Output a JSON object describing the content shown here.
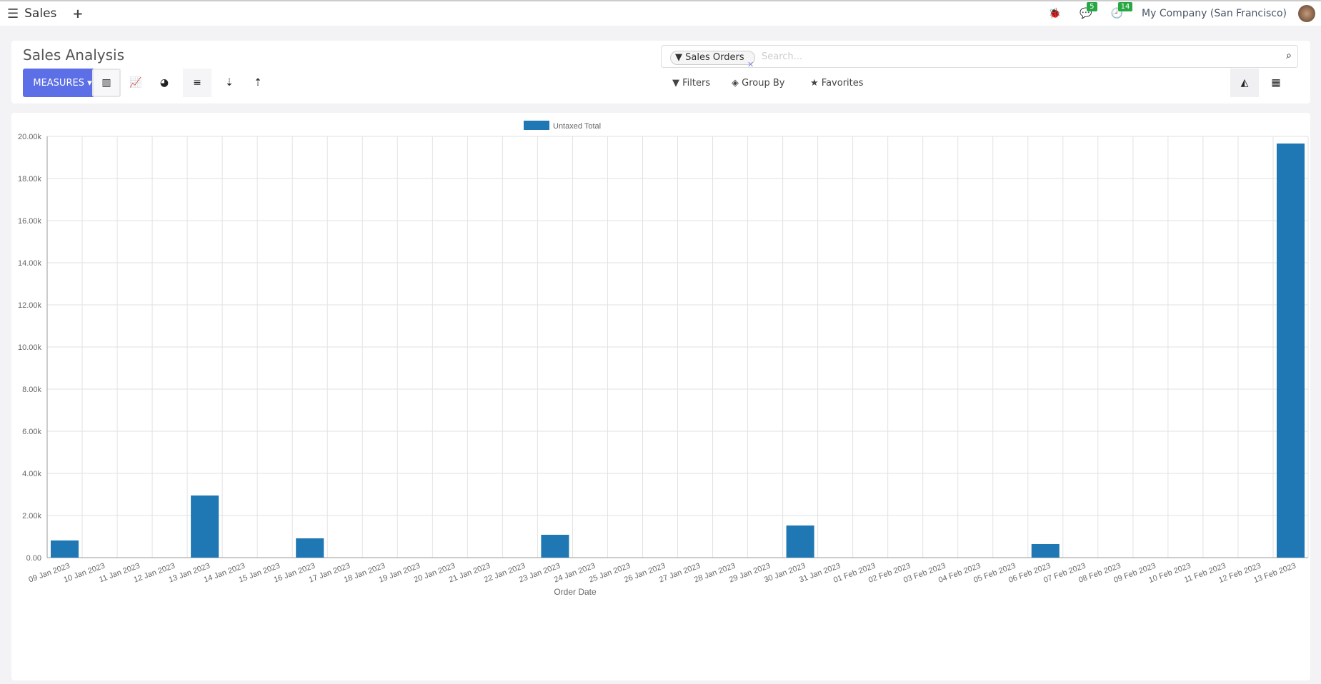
{
  "topbar": {
    "app": "Sales",
    "messages_count": "5",
    "activities_count": "14",
    "company": "My Company (San Francisco)"
  },
  "control": {
    "title": "Sales Analysis",
    "measures": "MEASURES",
    "facet": "Sales Orders",
    "search_placeholder": "Search...",
    "filters": "Filters",
    "group_by": "Group By",
    "favorites": "Favorites"
  },
  "chart_data": {
    "type": "bar",
    "legend": [
      "Untaxed Total"
    ],
    "legend_placement": "top",
    "xlabel": "Order Date",
    "ylabel": "",
    "ylim": [
      0,
      20000
    ],
    "yticks": [
      "0.00",
      "2.00k",
      "4.00k",
      "6.00k",
      "8.00k",
      "10.00k",
      "12.00k",
      "14.00k",
      "16.00k",
      "18.00k",
      "20.00k"
    ],
    "color": "#1f77b4",
    "grid": true,
    "categories": [
      "09 Jan 2023",
      "10 Jan 2023",
      "11 Jan 2023",
      "12 Jan 2023",
      "13 Jan 2023",
      "14 Jan 2023",
      "15 Jan 2023",
      "16 Jan 2023",
      "17 Jan 2023",
      "18 Jan 2023",
      "19 Jan 2023",
      "20 Jan 2023",
      "21 Jan 2023",
      "22 Jan 2023",
      "23 Jan 2023",
      "24 Jan 2023",
      "25 Jan 2023",
      "26 Jan 2023",
      "27 Jan 2023",
      "28 Jan 2023",
      "29 Jan 2023",
      "30 Jan 2023",
      "31 Jan 2023",
      "01 Feb 2023",
      "02 Feb 2023",
      "03 Feb 2023",
      "04 Feb 2023",
      "05 Feb 2023",
      "06 Feb 2023",
      "07 Feb 2023",
      "08 Feb 2023",
      "09 Feb 2023",
      "10 Feb 2023",
      "11 Feb 2023",
      "12 Feb 2023",
      "13 Feb 2023"
    ],
    "values": [
      815,
      0,
      0,
      0,
      2950,
      0,
      0,
      915,
      0,
      0,
      0,
      0,
      0,
      0,
      1085,
      0,
      0,
      0,
      0,
      0,
      0,
      1525,
      0,
      0,
      0,
      0,
      0,
      0,
      645,
      0,
      0,
      0,
      0,
      0,
      0,
      19660
    ]
  }
}
